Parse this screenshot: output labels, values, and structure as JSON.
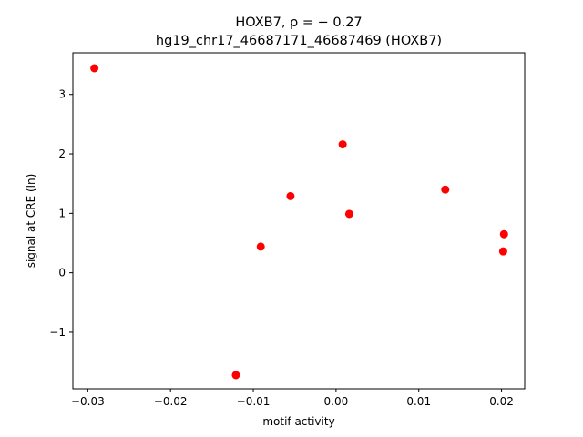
{
  "chart_data": {
    "type": "scatter",
    "title_line1": "HOXB7, ρ = − 0.27",
    "title_line2": "hg19_chr17_46687171_46687469 (HOXB7)",
    "xlabel": "motif activity",
    "ylabel": "signal at CRE (ln)",
    "xlim": [
      -0.0318,
      0.0228
    ],
    "ylim": [
      -1.95,
      3.7
    ],
    "xticks": [
      -0.03,
      -0.02,
      -0.01,
      0.0,
      0.01,
      0.02
    ],
    "xtick_labels": [
      "−0.03",
      "−0.02",
      "−0.01",
      "0.00",
      "0.01",
      "0.02"
    ],
    "yticks": [
      -1,
      0,
      1,
      2,
      3
    ],
    "ytick_labels": [
      "−1",
      "0",
      "1",
      "2",
      "3"
    ],
    "grid": false,
    "marker_color": "#ff0000",
    "points": [
      {
        "x": -0.0292,
        "y": 3.44
      },
      {
        "x": -0.0121,
        "y": -1.72
      },
      {
        "x": -0.0091,
        "y": 0.44
      },
      {
        "x": -0.0055,
        "y": 1.29
      },
      {
        "x": 0.0008,
        "y": 2.16
      },
      {
        "x": 0.0016,
        "y": 0.99
      },
      {
        "x": 0.0132,
        "y": 1.4
      },
      {
        "x": 0.0202,
        "y": 0.36
      },
      {
        "x": 0.0203,
        "y": 0.65
      }
    ]
  }
}
